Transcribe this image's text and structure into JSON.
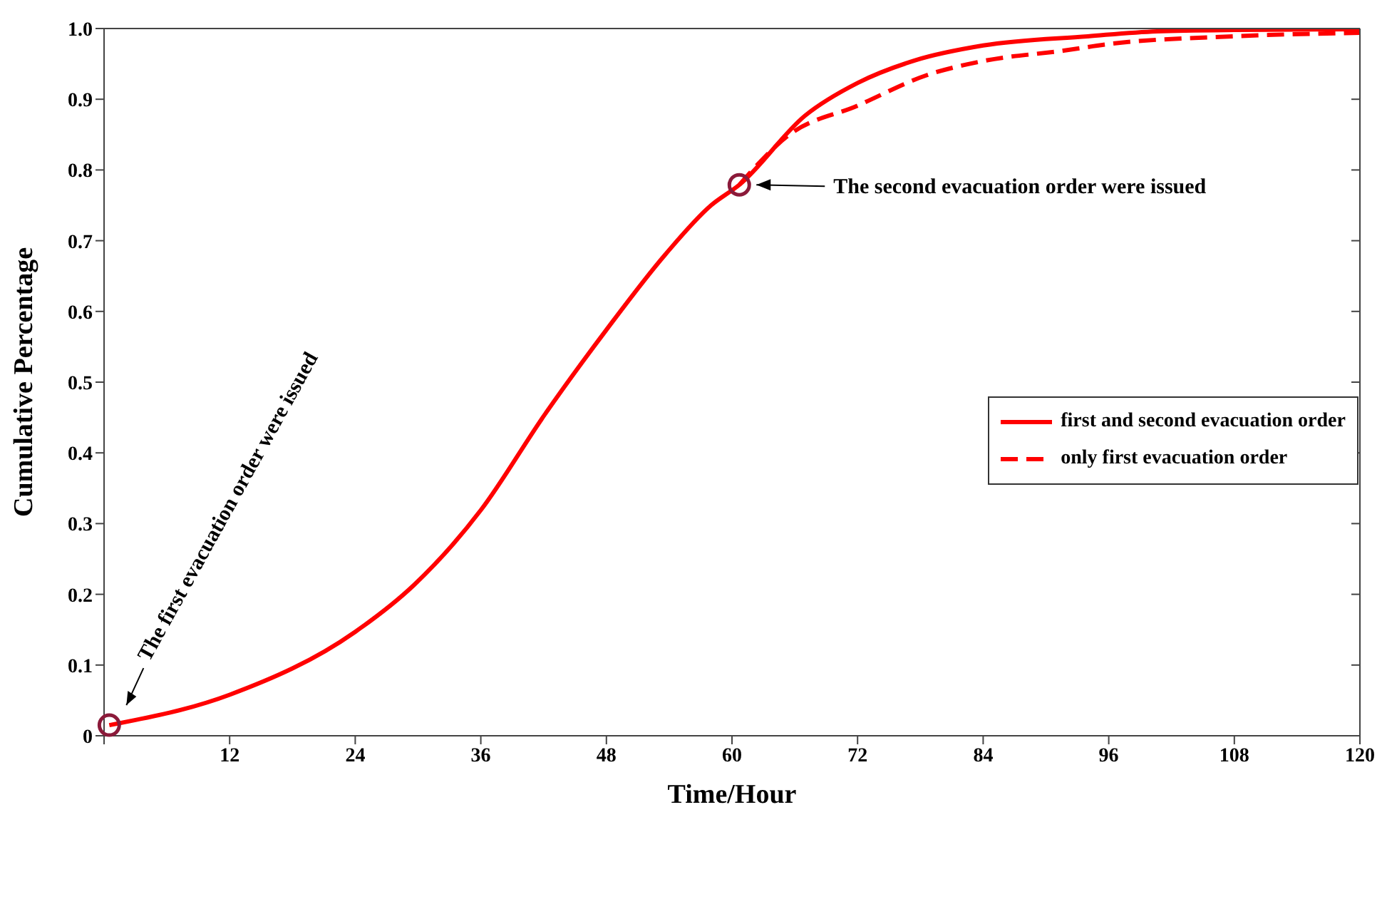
{
  "chart_data": {
    "type": "line",
    "xlabel": "Time/Hour",
    "ylabel": "Cumulative Percentage",
    "xlim": [
      0,
      120
    ],
    "xticks": [
      {
        "value": 0,
        "label": null
      },
      12,
      24,
      36,
      48,
      60,
      72,
      84,
      96,
      108,
      120
    ],
    "ylim": [
      0,
      1
    ],
    "yticks": [
      0,
      0.1,
      0.2,
      0.3,
      0.4,
      0.5,
      0.6,
      0.7,
      0.8,
      0.9,
      {
        "value": 1,
        "label": "1.0"
      }
    ],
    "legend": "right",
    "marker": "none",
    "series": [
      {
        "name": "first and second evacuation order",
        "color": "#ff0000",
        "line_style": "solid",
        "x": [
          0.5,
          12,
          24,
          29.6,
          36,
          42.1,
          48,
          53.6,
          58,
          60.7,
          67,
          72,
          77.5,
          84,
          94,
          100.6,
          108,
          120
        ],
        "values": [
          0.015,
          0.058,
          0.147,
          0.213,
          0.319,
          0.454,
          0.574,
          0.68,
          0.75,
          0.779,
          0.877,
          0.923,
          0.955,
          0.976,
          0.989,
          0.996,
          0.998,
          0.999
        ]
      },
      {
        "name": "only first evacuation order",
        "color": "#ff0000",
        "line_style": "dashed",
        "x": [
          60.7,
          65.4,
          72,
          78.6,
          84,
          91.8,
          96,
          108,
          120
        ],
        "values": [
          0.779,
          0.849,
          0.891,
          0.934,
          0.954,
          0.969,
          0.978,
          0.989,
          0.994
        ]
      }
    ],
    "annotations": [
      "The first evacuation order were issued",
      "The second evacuation order were issued"
    ]
  }
}
